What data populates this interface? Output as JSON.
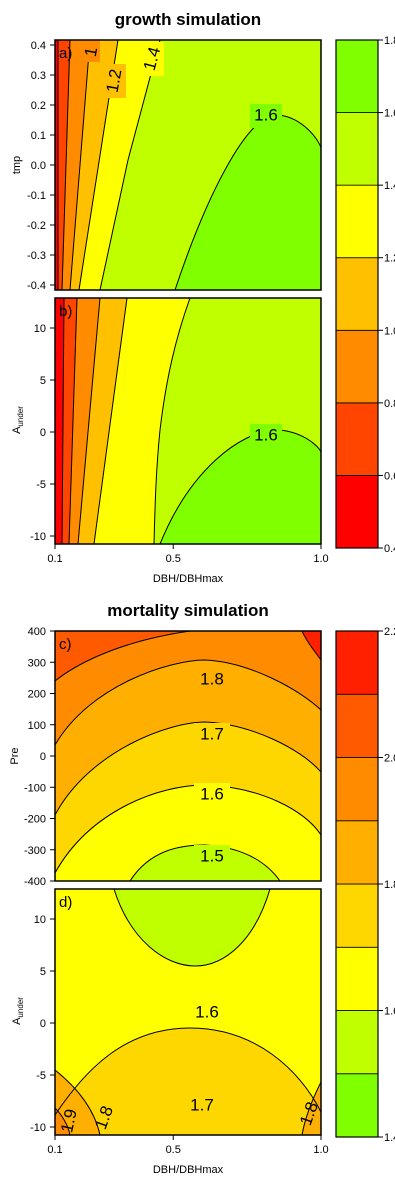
{
  "figure": {
    "growth_title": "growth simulation",
    "mortality_title": "mortality simulation"
  },
  "colors": {
    "growth_bands": [
      "#ff0000",
      "#ff4500",
      "#ff8c00",
      "#ffc000",
      "#ffff00",
      "#bfff00",
      "#80ff00"
    ],
    "mortality_bands": [
      "#80ff00",
      "#bfff00",
      "#ffff00",
      "#ffd700",
      "#ffaf00",
      "#ff8c00",
      "#ff5a00",
      "#ff2000"
    ]
  },
  "chart_data": [
    {
      "type": "contour",
      "panel_label": "a)",
      "group": "growth simulation",
      "xlabel": "",
      "ylabel": "tmp",
      "xlim": [
        0.1,
        1.0
      ],
      "ylim": [
        -0.42,
        0.42
      ],
      "xticks": [],
      "yticks": [
        "0.4",
        "0.3",
        "0.2",
        "0.1",
        "0.0",
        "-0.1",
        "-0.2",
        "-0.3",
        "-0.4"
      ],
      "contour_labels": [
        "1",
        "1.2",
        "1.4",
        "1.6"
      ]
    },
    {
      "type": "contour",
      "panel_label": "b)",
      "group": "growth simulation",
      "xlabel": "DBH/DBHmax",
      "ylabel": "A",
      "ylabel_sub": "under",
      "xlim": [
        0.1,
        1.0
      ],
      "ylim": [
        -11,
        13
      ],
      "xticks": [
        "0.1",
        "0.5",
        "1.0"
      ],
      "yticks": [
        "10",
        "5",
        "0",
        "-5",
        "-10"
      ],
      "contour_labels": [
        "1.6"
      ]
    },
    {
      "type": "colorbar",
      "group": "growth simulation",
      "range": [
        0.4,
        1.8
      ],
      "ticks": [
        "1.8",
        "1.6",
        "1.4",
        "1.2",
        "1.0",
        "0.8",
        "0.6",
        "0.4"
      ]
    },
    {
      "type": "contour",
      "panel_label": "c)",
      "group": "mortality simulation",
      "xlabel": "",
      "ylabel": "Pre",
      "xlim": [
        0.1,
        1.0
      ],
      "ylim": [
        -400,
        400
      ],
      "xticks": [],
      "yticks": [
        "400",
        "300",
        "200",
        "100",
        "0",
        "-100",
        "-200",
        "-300",
        "-400"
      ],
      "contour_labels": [
        "1.8",
        "1.7",
        "1.6",
        "1.5"
      ]
    },
    {
      "type": "contour",
      "panel_label": "d)",
      "group": "mortality simulation",
      "xlabel": "DBH/DBHmax",
      "ylabel": "A",
      "ylabel_sub": "under",
      "xlim": [
        0.1,
        1.0
      ],
      "ylim": [
        -11,
        13
      ],
      "xticks": [
        "0.1",
        "0.5",
        "1.0"
      ],
      "yticks": [
        "10",
        "5",
        "0",
        "-5",
        "-10"
      ],
      "contour_labels": [
        "1.6",
        "1.7",
        "1.9",
        "1.8",
        "1.8"
      ]
    },
    {
      "type": "colorbar",
      "group": "mortality simulation",
      "range": [
        1.4,
        2.2
      ],
      "ticks": [
        "2.2",
        "2.0",
        "1.8",
        "1.6",
        "1.4"
      ]
    }
  ]
}
